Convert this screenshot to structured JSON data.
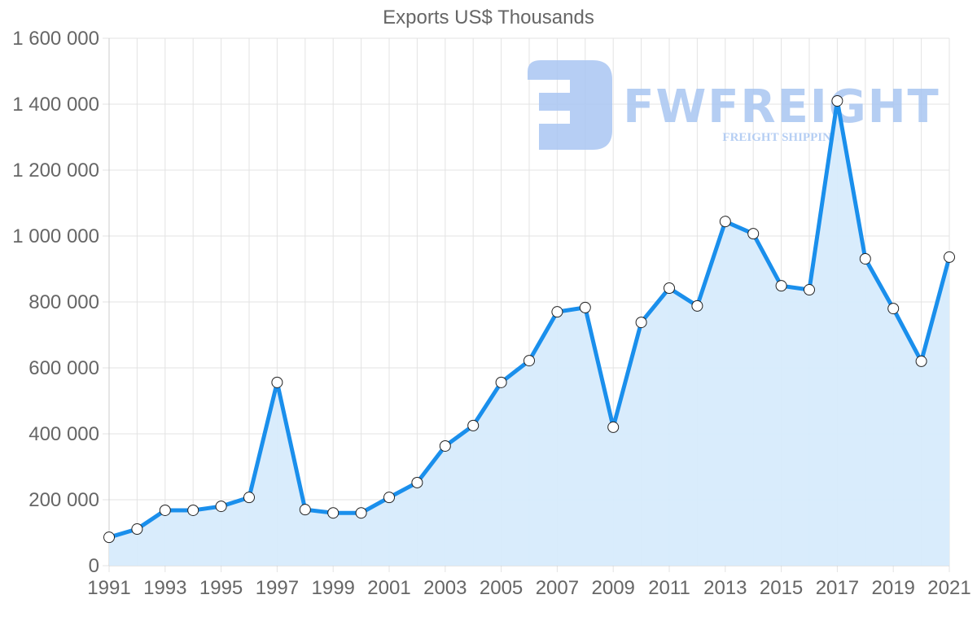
{
  "chart_data": {
    "type": "line",
    "title": "Exports US$ Thousands",
    "xlabel": "",
    "ylabel": "",
    "ylim": [
      0,
      1600000
    ],
    "yticks": [
      0,
      200000,
      400000,
      600000,
      800000,
      1000000,
      1200000,
      1400000,
      1600000
    ],
    "ytick_labels": [
      "0",
      "200 000",
      "400 000",
      "600 000",
      "800 000",
      "1 000 000",
      "1 200 000",
      "1 400 000",
      "1 600 000"
    ],
    "xtick_labels": [
      "1991",
      "1993",
      "1995",
      "1997",
      "1999",
      "2001",
      "2003",
      "2005",
      "2007",
      "2009",
      "2011",
      "2013",
      "2015",
      "2017",
      "2019",
      "2021"
    ],
    "grid": true,
    "legend": null,
    "filled_area": true,
    "x": [
      1991,
      1992,
      1993,
      1994,
      1995,
      1996,
      1997,
      1998,
      1999,
      2000,
      2001,
      2002,
      2003,
      2004,
      2005,
      2006,
      2007,
      2008,
      2009,
      2010,
      2011,
      2012,
      2013,
      2014,
      2015,
      2016,
      2017,
      2018,
      2019,
      2020,
      2021
    ],
    "series": [
      {
        "name": "Exports US$ Thousands",
        "values": [
          86000,
          111000,
          168000,
          168000,
          180000,
          207000,
          556000,
          170000,
          160000,
          160000,
          207000,
          252000,
          363000,
          425000,
          556000,
          622000,
          770000,
          783000,
          420000,
          738000,
          842000,
          788000,
          1044000,
          1007000,
          849000,
          837000,
          1410000,
          931000,
          780000,
          620000,
          936000
        ]
      }
    ]
  },
  "watermark": {
    "brand": "FWFREIGHT",
    "tagline": "FREIGHT SHIPPING"
  },
  "colors": {
    "line": "#1a8fec",
    "fill": "#d7ebfc",
    "grid": "#e3e3e3",
    "axis_text": "#666666",
    "watermark": "#a9c6f2"
  }
}
